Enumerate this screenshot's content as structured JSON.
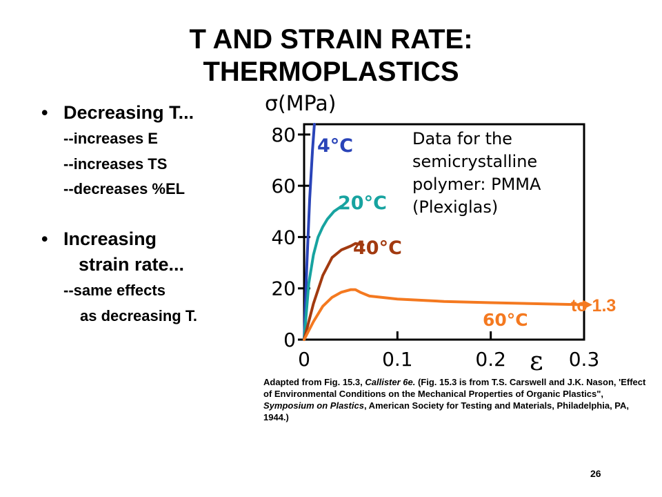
{
  "title": {
    "line1": "T AND STRAIN RATE:",
    "line2": "THERMOPLASTICS"
  },
  "bullets": [
    {
      "heading": "Decreasing T...",
      "subs": [
        "--increases E",
        "--increases TS",
        "--decreases %EL"
      ]
    },
    {
      "heading_line1": "Increasing",
      "heading_line2": "strain rate...",
      "subs": [
        "--same effects",
        "as decreasing T."
      ]
    }
  ],
  "chart_data": {
    "type": "line",
    "ylabel": "σ(MPa)",
    "xlabel": "ε",
    "xlim": [
      0,
      0.3
    ],
    "ylim": [
      0,
      84
    ],
    "xticks": [
      "0",
      "0.1",
      "0.2",
      "0.3"
    ],
    "yticks": [
      "0",
      "20",
      "40",
      "60",
      "80"
    ],
    "note": "Data for the semicrystalline polymer: PMMA (Plexiglas)",
    "note_lines": [
      "Data for the",
      "semicrystalline",
      "polymer: PMMA",
      "(Plexiglas)"
    ],
    "annotation": "to 1.3",
    "series": [
      {
        "name": "4°C",
        "color": "#2a44b8",
        "points": [
          [
            0,
            0
          ],
          [
            0.003,
            30
          ],
          [
            0.006,
            55
          ],
          [
            0.009,
            74
          ],
          [
            0.011,
            84
          ]
        ]
      },
      {
        "name": "20°C",
        "color": "#17a3a0",
        "points": [
          [
            0,
            0
          ],
          [
            0.005,
            22
          ],
          [
            0.01,
            33
          ],
          [
            0.015,
            40
          ],
          [
            0.02,
            44
          ],
          [
            0.025,
            47
          ],
          [
            0.032,
            50
          ],
          [
            0.04,
            52
          ]
        ]
      },
      {
        "name": "40°C",
        "color": "#a23a10",
        "points": [
          [
            0,
            0
          ],
          [
            0.01,
            14
          ],
          [
            0.02,
            25
          ],
          [
            0.03,
            32
          ],
          [
            0.04,
            35
          ],
          [
            0.05,
            36.5
          ],
          [
            0.055,
            37.5
          ],
          [
            0.063,
            37
          ]
        ]
      },
      {
        "name": "60°C",
        "color": "#f47920",
        "points": [
          [
            0,
            0
          ],
          [
            0.01,
            7
          ],
          [
            0.02,
            13
          ],
          [
            0.03,
            16.5
          ],
          [
            0.04,
            18.5
          ],
          [
            0.05,
            19.5
          ],
          [
            0.055,
            19.5
          ],
          [
            0.06,
            18.5
          ],
          [
            0.07,
            17
          ],
          [
            0.1,
            15.8
          ],
          [
            0.15,
            14.9
          ],
          [
            0.2,
            14.4
          ],
          [
            0.25,
            14.0
          ],
          [
            0.3,
            13.6
          ]
        ]
      }
    ]
  },
  "caption": {
    "part1": "Adapted from Fig. 15.3, ",
    "italic1": "Callister 6e.",
    "part2": "  (Fig. 15.3 is from T.S. Carswell and J.K. Nason, 'Effect of Environmental Conditions on the Mechanical Properties of Organic Plastics\", ",
    "italic2": "Symposium on Plastics",
    "part3": ", American Society for Testing and Materials, Philadelphia, PA, 1944.)"
  },
  "page_number": "26"
}
